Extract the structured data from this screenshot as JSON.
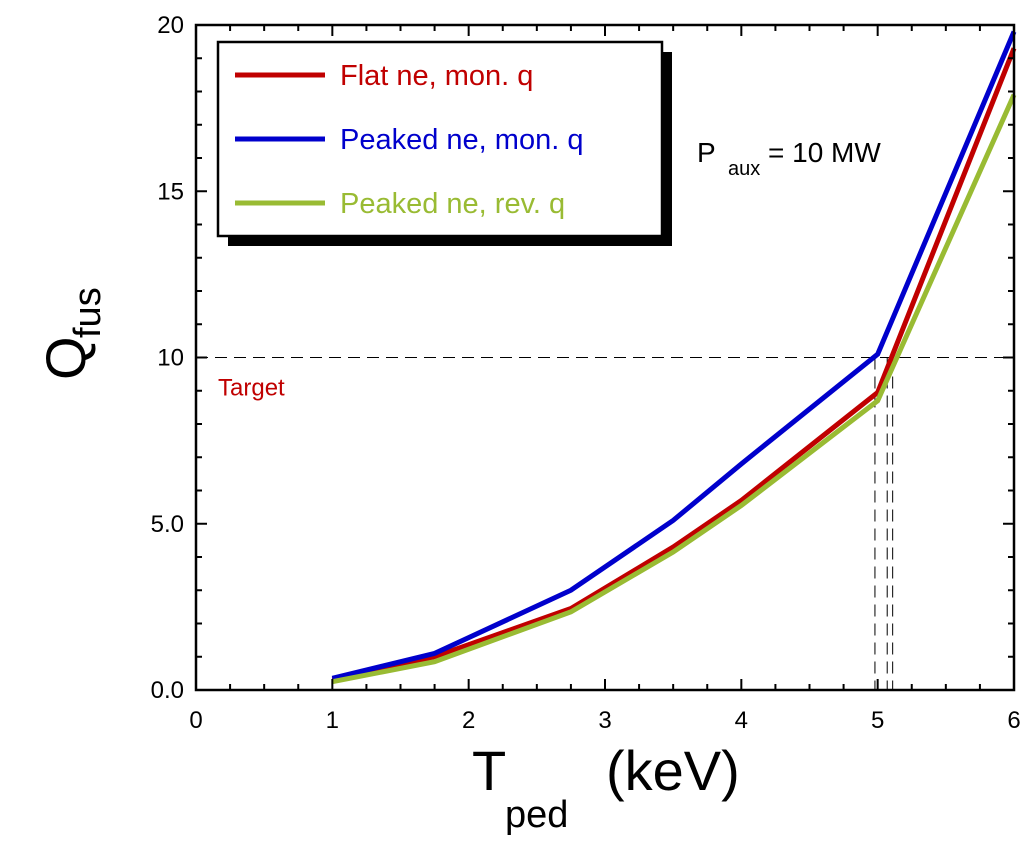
{
  "chart_data": {
    "type": "line",
    "xlabel": {
      "main": "T",
      "sub": "ped",
      "unit": "(keV)"
    },
    "ylabel": {
      "main": "Q",
      "sub": "fus"
    },
    "xlim": [
      0,
      6
    ],
    "ylim": [
      0,
      20
    ],
    "x_ticks": [
      "0",
      "1",
      "2",
      "3",
      "4",
      "5",
      "6"
    ],
    "y_ticks": [
      "0.0",
      "5.0",
      "10",
      "15",
      "20"
    ],
    "x_tick_values": [
      0,
      1,
      2,
      3,
      4,
      5,
      6
    ],
    "y_tick_values": [
      0,
      5,
      10,
      15,
      20
    ],
    "grid": false,
    "legend_position": "top-left",
    "series": [
      {
        "name": "Flat ne, mon. q",
        "color": "#c00000",
        "x": [
          1,
          1.75,
          2.75,
          3.5,
          4,
          5,
          6
        ],
        "y": [
          0.3,
          1.0,
          2.45,
          4.3,
          5.7,
          8.95,
          19.3
        ]
      },
      {
        "name": "Peaked ne, mon. q",
        "color": "#0000cc",
        "x": [
          1,
          1.75,
          2.75,
          3.5,
          4,
          5,
          6
        ],
        "y": [
          0.35,
          1.1,
          3.0,
          5.1,
          6.8,
          10.1,
          19.8
        ]
      },
      {
        "name": "Peaked ne, rev. q",
        "color": "#99bb33",
        "x": [
          1,
          1.75,
          2.75,
          3.5,
          4,
          5,
          6
        ],
        "y": [
          0.25,
          0.85,
          2.35,
          4.15,
          5.55,
          8.7,
          17.9
        ]
      }
    ],
    "reference_line": {
      "y": 10,
      "label": "Target",
      "label_color": "#c00000"
    },
    "drop_lines_x": [
      4.98,
      5.07,
      5.11
    ],
    "annotation": {
      "main": "P",
      "sub": "aux",
      "rest": "= 10 MW"
    }
  }
}
